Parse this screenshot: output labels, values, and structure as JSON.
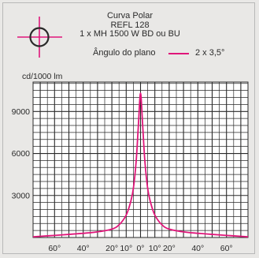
{
  "header": {
    "title": "Curva Polar",
    "model": "REFL 128",
    "lamp": "1 x MH 1500 W BD ou BU",
    "plane_label": "Ângulo do plano",
    "series_label": "2 x 3,5°"
  },
  "unit_label": "cd/1000 lm",
  "icons": {
    "target": "crosshair-circle-icon"
  },
  "colors": {
    "curve": "#e0167a",
    "grid": "#2a2a2a",
    "background": "#ffffff"
  },
  "chart_data": {
    "type": "line",
    "ylabel": "cd/1000 lm",
    "ylim": [
      0,
      11100
    ],
    "xlim": [
      -75,
      75
    ],
    "yticks": [
      3000,
      6000,
      9000
    ],
    "ytick_labels": [
      "3000",
      "6000",
      "9000"
    ],
    "xticks": [
      -60,
      -40,
      -20,
      -10,
      0,
      10,
      20,
      40,
      60
    ],
    "xtick_labels": [
      "60°",
      "40°",
      "20°",
      "10°",
      "0°",
      "10°",
      "20°",
      "40°",
      "60°"
    ],
    "grid": true,
    "series": [
      {
        "name": "2 x 3,5°",
        "color": "#e0167a",
        "x": [
          -75,
          -60,
          -40,
          -30,
          -20,
          -15,
          -10,
          -7,
          -5,
          -3,
          -1.5,
          0,
          1.5,
          3,
          5,
          7,
          10,
          15,
          20,
          30,
          40,
          60,
          75
        ],
        "y": [
          50,
          150,
          300,
          400,
          600,
          900,
          1600,
          2500,
          3500,
          5500,
          8000,
          10300,
          8000,
          5500,
          3500,
          2500,
          1600,
          900,
          600,
          400,
          300,
          150,
          50
        ]
      }
    ]
  }
}
